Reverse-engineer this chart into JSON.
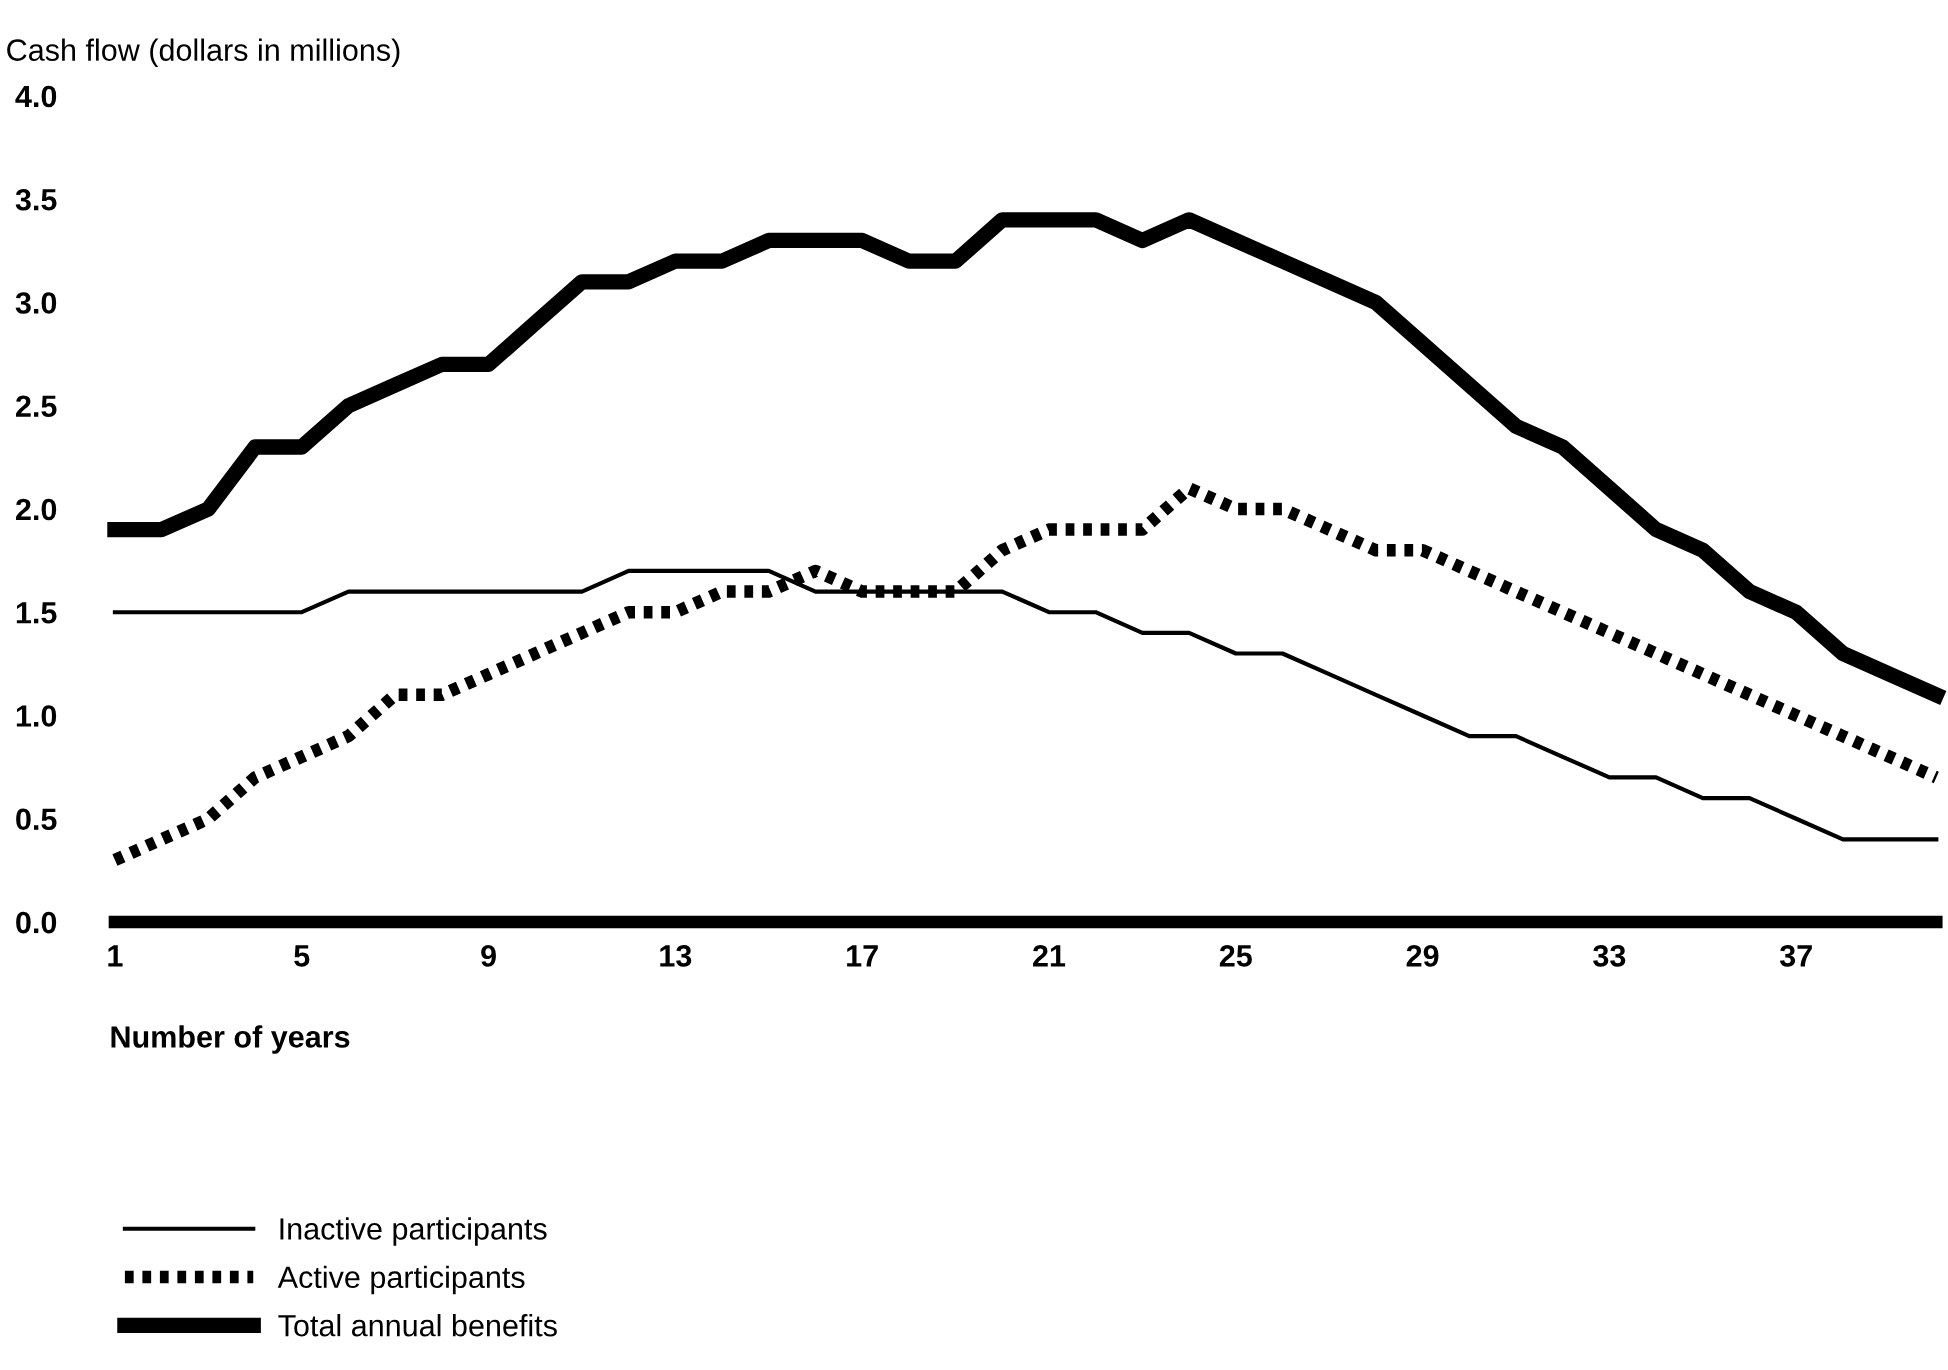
{
  "chart_data": {
    "type": "line",
    "ylabel": "Cash flow (dollars in millions)",
    "xlabel": "Number of years",
    "x": [
      1,
      2,
      3,
      4,
      5,
      6,
      7,
      8,
      9,
      10,
      11,
      12,
      13,
      14,
      15,
      16,
      17,
      18,
      19,
      20,
      21,
      22,
      23,
      24,
      25,
      26,
      27,
      28,
      29,
      30,
      31,
      32,
      33,
      34,
      35,
      36,
      37,
      38,
      39,
      40
    ],
    "series": [
      {
        "name": "Inactive participants",
        "color": "#000000",
        "line_style": "solid",
        "values": [
          1.5,
          1.5,
          1.5,
          1.5,
          1.5,
          1.6,
          1.6,
          1.6,
          1.6,
          1.6,
          1.6,
          1.7,
          1.7,
          1.7,
          1.7,
          1.6,
          1.6,
          1.6,
          1.6,
          1.6,
          1.5,
          1.5,
          1.4,
          1.4,
          1.3,
          1.3,
          1.2,
          1.1,
          1.0,
          0.9,
          0.9,
          0.8,
          0.7,
          0.7,
          0.6,
          0.6,
          0.5,
          0.4,
          0.4,
          0.4
        ]
      },
      {
        "name": "Active participants",
        "color": "#000000",
        "line_style": "dotted",
        "values": [
          0.3,
          0.4,
          0.5,
          0.7,
          0.8,
          0.9,
          1.1,
          1.1,
          1.2,
          1.3,
          1.4,
          1.5,
          1.5,
          1.6,
          1.6,
          1.7,
          1.6,
          1.6,
          1.6,
          1.8,
          1.9,
          1.9,
          1.9,
          2.1,
          2.0,
          2.0,
          1.9,
          1.8,
          1.8,
          1.7,
          1.6,
          1.5,
          1.4,
          1.3,
          1.2,
          1.1,
          1.0,
          0.9,
          0.8,
          0.7
        ]
      },
      {
        "name": "Total annual benefits",
        "color": "#000000",
        "line_style": "solid",
        "values": [
          1.9,
          1.9,
          2.0,
          2.3,
          2.3,
          2.5,
          2.6,
          2.7,
          2.7,
          2.9,
          3.1,
          3.1,
          3.2,
          3.2,
          3.3,
          3.3,
          3.3,
          3.2,
          3.2,
          3.4,
          3.4,
          3.4,
          3.3,
          3.4,
          3.3,
          3.2,
          3.1,
          3.0,
          2.8,
          2.6,
          2.4,
          2.3,
          2.1,
          1.9,
          1.8,
          1.6,
          1.5,
          1.3,
          1.2,
          1.1
        ]
      }
    ],
    "xlim": [
      1,
      40
    ],
    "ylim": [
      0,
      4
    ],
    "xticks": [
      1,
      5,
      9,
      13,
      17,
      21,
      25,
      29,
      33,
      37
    ],
    "yticks": [
      {
        "value": 0,
        "label": "0.0"
      },
      {
        "value": 0.5,
        "label": "0.5"
      },
      {
        "value": 1,
        "label": "1.0"
      },
      {
        "value": 1.5,
        "label": "1.5"
      },
      {
        "value": 2,
        "label": "2.0"
      },
      {
        "value": 2.5,
        "label": "2.5"
      },
      {
        "value": 3,
        "label": "3.0"
      },
      {
        "value": 3.5,
        "label": "3.5"
      },
      {
        "value": 4,
        "label": "4.0"
      }
    ],
    "grid": false,
    "legend": "bottom left",
    "marker": "none"
  }
}
